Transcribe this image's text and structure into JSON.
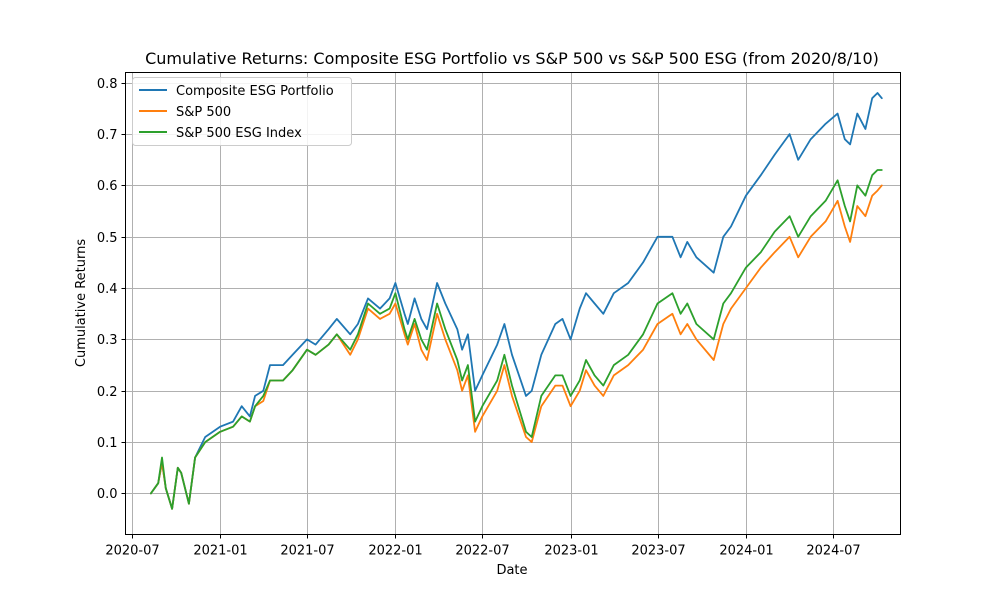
{
  "chart_data": {
    "type": "line",
    "title": "Cumulative Returns: Composite ESG Portfolio vs S&P 500 vs S&P 500 ESG (from 2020/8/10)",
    "xlabel": "Date",
    "ylabel": "Cumulative Returns",
    "xlim": [
      "2020-06-18",
      "2024-11-18"
    ],
    "ylim": [
      -0.08,
      0.82
    ],
    "x_ticks": [
      "2020-07",
      "2021-01",
      "2021-07",
      "2022-01",
      "2022-07",
      "2023-01",
      "2023-07",
      "2024-01",
      "2024-07"
    ],
    "x_tick_dates": [
      "2020-07-01",
      "2021-01-01",
      "2021-07-01",
      "2022-01-01",
      "2022-07-01",
      "2023-01-01",
      "2023-07-01",
      "2024-01-01",
      "2024-07-01"
    ],
    "y_ticks": [
      0.0,
      0.1,
      0.2,
      0.3,
      0.4,
      0.5,
      0.6,
      0.7,
      0.8
    ],
    "y_tick_labels": [
      "0.0",
      "0.1",
      "0.2",
      "0.3",
      "0.4",
      "0.5",
      "0.6",
      "0.7",
      "0.8"
    ],
    "grid": true,
    "legend": "top-left",
    "series": [
      {
        "name": "Composite ESG Portfolio",
        "color": "#1f77b4",
        "points": [
          [
            "2020-08-10",
            0.0
          ],
          [
            "2020-08-25",
            0.02
          ],
          [
            "2020-09-02",
            0.06
          ],
          [
            "2020-09-10",
            0.01
          ],
          [
            "2020-09-23",
            -0.03
          ],
          [
            "2020-10-05",
            0.05
          ],
          [
            "2020-10-12",
            0.04
          ],
          [
            "2020-10-28",
            -0.02
          ],
          [
            "2020-11-10",
            0.07
          ],
          [
            "2020-12-01",
            0.11
          ],
          [
            "2021-01-01",
            0.13
          ],
          [
            "2021-01-28",
            0.14
          ],
          [
            "2021-02-15",
            0.17
          ],
          [
            "2021-03-04",
            0.15
          ],
          [
            "2021-03-15",
            0.19
          ],
          [
            "2021-04-01",
            0.2
          ],
          [
            "2021-04-15",
            0.25
          ],
          [
            "2021-05-12",
            0.25
          ],
          [
            "2021-06-01",
            0.27
          ],
          [
            "2021-07-01",
            0.3
          ],
          [
            "2021-07-19",
            0.29
          ],
          [
            "2021-08-15",
            0.32
          ],
          [
            "2021-09-01",
            0.34
          ],
          [
            "2021-09-29",
            0.31
          ],
          [
            "2021-10-15",
            0.33
          ],
          [
            "2021-11-05",
            0.38
          ],
          [
            "2021-11-30",
            0.36
          ],
          [
            "2021-12-20",
            0.38
          ],
          [
            "2022-01-01",
            0.41
          ],
          [
            "2022-01-20",
            0.35
          ],
          [
            "2022-01-27",
            0.33
          ],
          [
            "2022-02-10",
            0.38
          ],
          [
            "2022-02-24",
            0.34
          ],
          [
            "2022-03-08",
            0.32
          ],
          [
            "2022-03-29",
            0.41
          ],
          [
            "2022-04-15",
            0.37
          ],
          [
            "2022-05-10",
            0.32
          ],
          [
            "2022-05-20",
            0.28
          ],
          [
            "2022-06-01",
            0.31
          ],
          [
            "2022-06-16",
            0.2
          ],
          [
            "2022-07-01",
            0.23
          ],
          [
            "2022-08-01",
            0.29
          ],
          [
            "2022-08-16",
            0.33
          ],
          [
            "2022-09-01",
            0.27
          ],
          [
            "2022-09-30",
            0.19
          ],
          [
            "2022-10-12",
            0.2
          ],
          [
            "2022-11-01",
            0.27
          ],
          [
            "2022-11-30",
            0.33
          ],
          [
            "2022-12-15",
            0.34
          ],
          [
            "2023-01-01",
            0.3
          ],
          [
            "2023-01-20",
            0.36
          ],
          [
            "2023-02-02",
            0.39
          ],
          [
            "2023-02-20",
            0.37
          ],
          [
            "2023-03-10",
            0.35
          ],
          [
            "2023-04-01",
            0.39
          ],
          [
            "2023-05-01",
            0.41
          ],
          [
            "2023-06-01",
            0.45
          ],
          [
            "2023-07-01",
            0.5
          ],
          [
            "2023-08-01",
            0.5
          ],
          [
            "2023-08-18",
            0.46
          ],
          [
            "2023-09-01",
            0.49
          ],
          [
            "2023-09-20",
            0.46
          ],
          [
            "2023-10-26",
            0.43
          ],
          [
            "2023-11-15",
            0.5
          ],
          [
            "2023-12-01",
            0.52
          ],
          [
            "2024-01-01",
            0.58
          ],
          [
            "2024-02-01",
            0.62
          ],
          [
            "2024-03-01",
            0.66
          ],
          [
            "2024-04-01",
            0.7
          ],
          [
            "2024-04-19",
            0.65
          ],
          [
            "2024-05-15",
            0.69
          ],
          [
            "2024-06-15",
            0.72
          ],
          [
            "2024-07-10",
            0.74
          ],
          [
            "2024-07-25",
            0.69
          ],
          [
            "2024-08-05",
            0.68
          ],
          [
            "2024-08-20",
            0.74
          ],
          [
            "2024-09-06",
            0.71
          ],
          [
            "2024-09-20",
            0.77
          ],
          [
            "2024-10-01",
            0.78
          ],
          [
            "2024-10-10",
            0.77
          ]
        ]
      },
      {
        "name": "S&P 500",
        "color": "#ff7f0e",
        "points": [
          [
            "2020-08-10",
            0.0
          ],
          [
            "2020-08-25",
            0.02
          ],
          [
            "2020-09-02",
            0.06
          ],
          [
            "2020-09-10",
            0.01
          ],
          [
            "2020-09-23",
            -0.03
          ],
          [
            "2020-10-05",
            0.05
          ],
          [
            "2020-10-12",
            0.04
          ],
          [
            "2020-10-28",
            -0.02
          ],
          [
            "2020-11-10",
            0.07
          ],
          [
            "2020-12-01",
            0.1
          ],
          [
            "2021-01-01",
            0.12
          ],
          [
            "2021-01-28",
            0.13
          ],
          [
            "2021-02-15",
            0.15
          ],
          [
            "2021-03-04",
            0.14
          ],
          [
            "2021-03-15",
            0.17
          ],
          [
            "2021-04-01",
            0.18
          ],
          [
            "2021-04-15",
            0.22
          ],
          [
            "2021-05-12",
            0.22
          ],
          [
            "2021-06-01",
            0.24
          ],
          [
            "2021-07-01",
            0.28
          ],
          [
            "2021-07-19",
            0.27
          ],
          [
            "2021-08-15",
            0.29
          ],
          [
            "2021-09-01",
            0.31
          ],
          [
            "2021-09-29",
            0.27
          ],
          [
            "2021-10-15",
            0.3
          ],
          [
            "2021-11-05",
            0.36
          ],
          [
            "2021-11-30",
            0.34
          ],
          [
            "2021-12-20",
            0.35
          ],
          [
            "2022-01-01",
            0.37
          ],
          [
            "2022-01-20",
            0.31
          ],
          [
            "2022-01-27",
            0.29
          ],
          [
            "2022-02-10",
            0.33
          ],
          [
            "2022-02-24",
            0.28
          ],
          [
            "2022-03-08",
            0.26
          ],
          [
            "2022-03-29",
            0.35
          ],
          [
            "2022-04-15",
            0.3
          ],
          [
            "2022-05-10",
            0.24
          ],
          [
            "2022-05-20",
            0.2
          ],
          [
            "2022-06-01",
            0.23
          ],
          [
            "2022-06-16",
            0.12
          ],
          [
            "2022-07-01",
            0.15
          ],
          [
            "2022-08-01",
            0.2
          ],
          [
            "2022-08-16",
            0.25
          ],
          [
            "2022-09-01",
            0.19
          ],
          [
            "2022-09-30",
            0.11
          ],
          [
            "2022-10-12",
            0.1
          ],
          [
            "2022-11-01",
            0.17
          ],
          [
            "2022-11-30",
            0.21
          ],
          [
            "2022-12-15",
            0.21
          ],
          [
            "2023-01-01",
            0.17
          ],
          [
            "2023-01-20",
            0.2
          ],
          [
            "2023-02-02",
            0.24
          ],
          [
            "2023-02-20",
            0.21
          ],
          [
            "2023-03-10",
            0.19
          ],
          [
            "2023-04-01",
            0.23
          ],
          [
            "2023-05-01",
            0.25
          ],
          [
            "2023-06-01",
            0.28
          ],
          [
            "2023-07-01",
            0.33
          ],
          [
            "2023-08-01",
            0.35
          ],
          [
            "2023-08-18",
            0.31
          ],
          [
            "2023-09-01",
            0.33
          ],
          [
            "2023-09-20",
            0.3
          ],
          [
            "2023-10-26",
            0.26
          ],
          [
            "2023-11-15",
            0.33
          ],
          [
            "2023-12-01",
            0.36
          ],
          [
            "2024-01-01",
            0.4
          ],
          [
            "2024-02-01",
            0.44
          ],
          [
            "2024-03-01",
            0.47
          ],
          [
            "2024-04-01",
            0.5
          ],
          [
            "2024-04-19",
            0.46
          ],
          [
            "2024-05-15",
            0.5
          ],
          [
            "2024-06-15",
            0.53
          ],
          [
            "2024-07-10",
            0.57
          ],
          [
            "2024-07-25",
            0.52
          ],
          [
            "2024-08-05",
            0.49
          ],
          [
            "2024-08-20",
            0.56
          ],
          [
            "2024-09-06",
            0.54
          ],
          [
            "2024-09-20",
            0.58
          ],
          [
            "2024-10-01",
            0.59
          ],
          [
            "2024-10-10",
            0.6
          ]
        ]
      },
      {
        "name": "S&P 500 ESG Index",
        "color": "#2ca02c",
        "points": [
          [
            "2020-08-10",
            0.0
          ],
          [
            "2020-08-25",
            0.02
          ],
          [
            "2020-09-02",
            0.07
          ],
          [
            "2020-09-10",
            0.01
          ],
          [
            "2020-09-23",
            -0.03
          ],
          [
            "2020-10-05",
            0.05
          ],
          [
            "2020-10-12",
            0.04
          ],
          [
            "2020-10-28",
            -0.02
          ],
          [
            "2020-11-10",
            0.07
          ],
          [
            "2020-12-01",
            0.1
          ],
          [
            "2021-01-01",
            0.12
          ],
          [
            "2021-01-28",
            0.13
          ],
          [
            "2021-02-15",
            0.15
          ],
          [
            "2021-03-04",
            0.14
          ],
          [
            "2021-03-15",
            0.17
          ],
          [
            "2021-04-01",
            0.19
          ],
          [
            "2021-04-15",
            0.22
          ],
          [
            "2021-05-12",
            0.22
          ],
          [
            "2021-06-01",
            0.24
          ],
          [
            "2021-07-01",
            0.28
          ],
          [
            "2021-07-19",
            0.27
          ],
          [
            "2021-08-15",
            0.29
          ],
          [
            "2021-09-01",
            0.31
          ],
          [
            "2021-09-29",
            0.28
          ],
          [
            "2021-10-15",
            0.31
          ],
          [
            "2021-11-05",
            0.37
          ],
          [
            "2021-11-30",
            0.35
          ],
          [
            "2021-12-20",
            0.36
          ],
          [
            "2022-01-01",
            0.39
          ],
          [
            "2022-01-20",
            0.32
          ],
          [
            "2022-01-27",
            0.3
          ],
          [
            "2022-02-10",
            0.34
          ],
          [
            "2022-02-24",
            0.3
          ],
          [
            "2022-03-08",
            0.28
          ],
          [
            "2022-03-29",
            0.37
          ],
          [
            "2022-04-15",
            0.32
          ],
          [
            "2022-05-10",
            0.26
          ],
          [
            "2022-05-20",
            0.22
          ],
          [
            "2022-06-01",
            0.25
          ],
          [
            "2022-06-16",
            0.14
          ],
          [
            "2022-07-01",
            0.17
          ],
          [
            "2022-08-01",
            0.22
          ],
          [
            "2022-08-16",
            0.27
          ],
          [
            "2022-09-01",
            0.21
          ],
          [
            "2022-09-30",
            0.12
          ],
          [
            "2022-10-12",
            0.11
          ],
          [
            "2022-11-01",
            0.19
          ],
          [
            "2022-11-30",
            0.23
          ],
          [
            "2022-12-15",
            0.23
          ],
          [
            "2023-01-01",
            0.19
          ],
          [
            "2023-01-20",
            0.22
          ],
          [
            "2023-02-02",
            0.26
          ],
          [
            "2023-02-20",
            0.23
          ],
          [
            "2023-03-10",
            0.21
          ],
          [
            "2023-04-01",
            0.25
          ],
          [
            "2023-05-01",
            0.27
          ],
          [
            "2023-06-01",
            0.31
          ],
          [
            "2023-07-01",
            0.37
          ],
          [
            "2023-08-01",
            0.39
          ],
          [
            "2023-08-18",
            0.35
          ],
          [
            "2023-09-01",
            0.37
          ],
          [
            "2023-09-20",
            0.33
          ],
          [
            "2023-10-26",
            0.3
          ],
          [
            "2023-11-15",
            0.37
          ],
          [
            "2023-12-01",
            0.39
          ],
          [
            "2024-01-01",
            0.44
          ],
          [
            "2024-02-01",
            0.47
          ],
          [
            "2024-03-01",
            0.51
          ],
          [
            "2024-04-01",
            0.54
          ],
          [
            "2024-04-19",
            0.5
          ],
          [
            "2024-05-15",
            0.54
          ],
          [
            "2024-06-15",
            0.57
          ],
          [
            "2024-07-10",
            0.61
          ],
          [
            "2024-07-25",
            0.56
          ],
          [
            "2024-08-05",
            0.53
          ],
          [
            "2024-08-20",
            0.6
          ],
          [
            "2024-09-06",
            0.58
          ],
          [
            "2024-09-20",
            0.62
          ],
          [
            "2024-10-01",
            0.63
          ],
          [
            "2024-10-10",
            0.63
          ]
        ]
      }
    ]
  }
}
